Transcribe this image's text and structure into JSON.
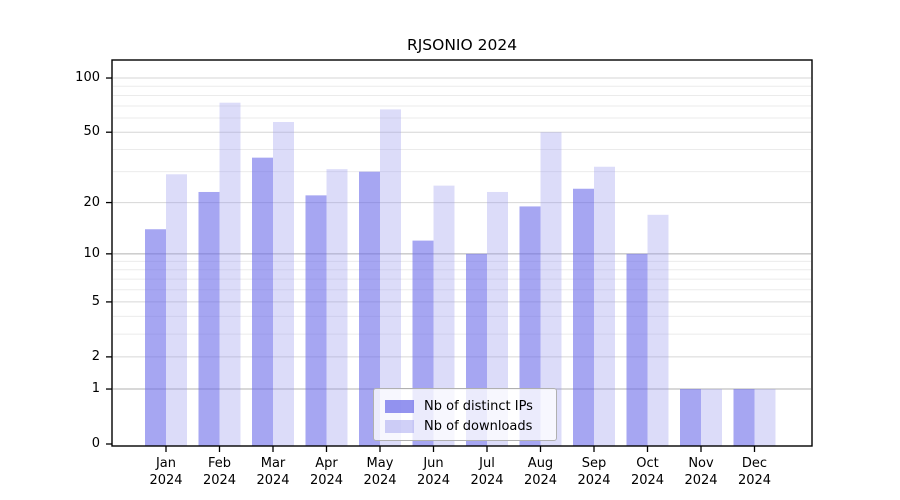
{
  "title": "RJSONIO 2024",
  "chart_data": {
    "type": "bar",
    "title": "RJSONIO 2024",
    "categories": [
      "Jan",
      "Feb",
      "Mar",
      "Apr",
      "May",
      "Jun",
      "Jul",
      "Aug",
      "Sep",
      "Oct",
      "Nov",
      "Dec"
    ],
    "xtick_year_line": "2024",
    "series": [
      {
        "name": "Nb of distinct IPs",
        "values": [
          14,
          23,
          36,
          22,
          30,
          12,
          10,
          19,
          24,
          10,
          1,
          1
        ],
        "color": "#6666e8",
        "opacity": 0.58
      },
      {
        "name": "Nb of downloads",
        "values": [
          29,
          73,
          57,
          31,
          67,
          25,
          23,
          50,
          32,
          17,
          1,
          1
        ],
        "color": "#9999ee",
        "opacity": 0.34
      }
    ],
    "yscale": "log1p",
    "ylim": [
      0,
      125
    ],
    "yticks": [
      0,
      1,
      2,
      5,
      10,
      20,
      50,
      100
    ],
    "minor_gridlines": [
      3,
      4,
      6,
      7,
      8,
      9,
      30,
      40,
      60,
      70,
      80,
      90
    ],
    "grid": true,
    "legend_position": "lower center"
  },
  "colors": {
    "background": "#ffffff",
    "axis": "#000000",
    "text": "#000000",
    "grid_labeled": "#d6d6d6",
    "grid_power10": "#b0b0b0",
    "grid_minor": "#ebebeb"
  }
}
